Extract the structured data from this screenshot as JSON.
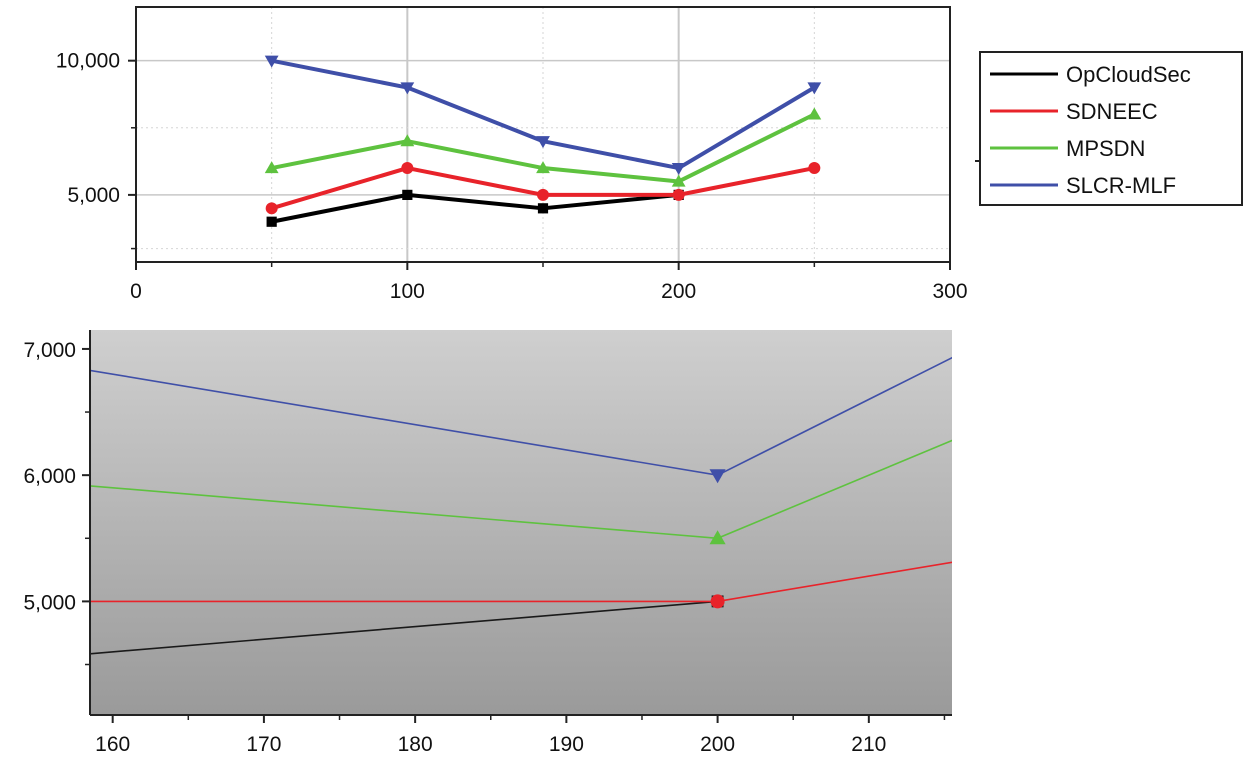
{
  "chart_data": [
    {
      "type": "line",
      "title": "",
      "xlabel": "",
      "ylabel": "",
      "x": [
        50,
        100,
        150,
        200,
        250
      ],
      "xlim": [
        0,
        300
      ],
      "ylim": [
        2500,
        12000
      ],
      "x_ticks": [
        0,
        100,
        200,
        300
      ],
      "x_tick_labels": [
        "0",
        "100",
        "200",
        "300"
      ],
      "y_ticks": [
        5000,
        10000
      ],
      "y_tick_labels": [
        "5,000",
        "10,000"
      ],
      "grid": true,
      "legend": "right",
      "series": [
        {
          "name": "OpCloudSec",
          "color": "#000000",
          "marker": "square",
          "values": [
            4000,
            5000,
            4500,
            5000,
            null
          ]
        },
        {
          "name": "SDNEEC",
          "color": "#e8232a",
          "marker": "circle",
          "values": [
            4500,
            6000,
            5000,
            5000,
            6000
          ]
        },
        {
          "name": "MPSDN",
          "color": "#5ec23f",
          "marker": "triangle-up",
          "values": [
            6000,
            7000,
            6000,
            5500,
            8000
          ]
        },
        {
          "name": "SLCR-MLF",
          "color": "#3f4fa8",
          "marker": "triangle-down",
          "values": [
            10000,
            9000,
            7000,
            6000,
            9000
          ]
        }
      ]
    },
    {
      "type": "line",
      "title": "",
      "xlabel": "",
      "ylabel": "",
      "note": "zoomed inset around x = 200",
      "xlim": [
        158.5,
        215.5
      ],
      "ylim": [
        4100,
        7150
      ],
      "x_ticks": [
        160,
        170,
        180,
        190,
        200,
        210
      ],
      "x_tick_labels": [
        "160",
        "170",
        "180",
        "190",
        "200",
        "210"
      ],
      "y_ticks": [
        5000,
        6000,
        7000
      ],
      "y_tick_labels": [
        "5,000",
        "6,000",
        "7,000"
      ],
      "grid": false,
      "series": [
        {
          "name": "OpCloudSec",
          "color": "#1a1a1a",
          "marker": "square",
          "x": [
            150,
            200
          ],
          "values": [
            4500,
            5000
          ]
        },
        {
          "name": "SDNEEC",
          "color": "#e8232a",
          "marker": "circle",
          "x": [
            150,
            200,
            250
          ],
          "values": [
            5000,
            5000,
            6000
          ]
        },
        {
          "name": "MPSDN",
          "color": "#5ec23f",
          "marker": "triangle-up",
          "x": [
            150,
            200,
            250
          ],
          "values": [
            6000,
            5500,
            8000
          ]
        },
        {
          "name": "SLCR-MLF",
          "color": "#3f4fa8",
          "marker": "triangle-down",
          "x": [
            150,
            200,
            250
          ],
          "values": [
            7000,
            6000,
            9000
          ]
        }
      ],
      "markers_at_x": 200
    }
  ]
}
